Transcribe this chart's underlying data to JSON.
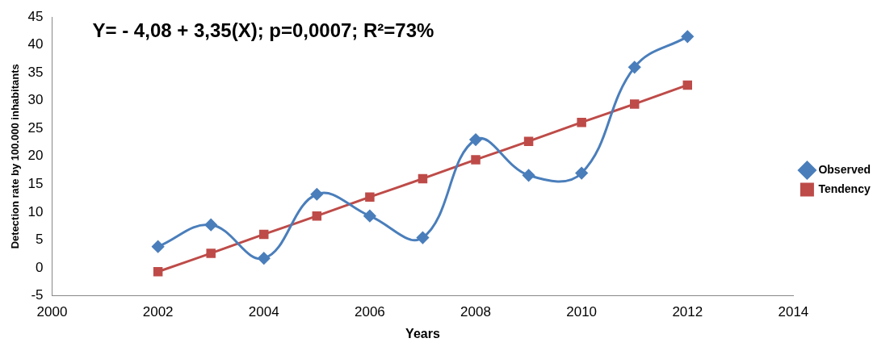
{
  "chart_data": {
    "type": "line",
    "xlabel": "Years",
    "ylabel": "Detection rate by 100.000 inhabitants",
    "annotations": [
      "Y= - 4,08 + 3,35(X); p=0,0007; R²=73%"
    ],
    "x": [
      2002,
      2003,
      2004,
      2005,
      2006,
      2007,
      2008,
      2009,
      2010,
      2011,
      2012
    ],
    "series": [
      {
        "name": "Observed",
        "color": "#4a7ebb",
        "marker": "diamond",
        "values": [
          3.8,
          7.7,
          1.7,
          13.2,
          9.3,
          5.4,
          23,
          16.6,
          17,
          36,
          41.5
        ]
      },
      {
        "name": "Tendency",
        "color": "#be4b48",
        "marker": "square",
        "values": [
          -0.7,
          2.6,
          6,
          9.3,
          12.7,
          16,
          19.4,
          22.7,
          26.1,
          29.4,
          32.8
        ]
      }
    ],
    "xlim": [
      2000,
      2014
    ],
    "xticks": [
      2000,
      2002,
      2004,
      2006,
      2008,
      2010,
      2012,
      2014
    ],
    "ylim": [
      -5,
      45
    ],
    "yticks": [
      -5,
      0,
      5,
      10,
      15,
      20,
      25,
      30,
      35,
      40,
      45
    ],
    "grid": false,
    "legend": "right"
  }
}
